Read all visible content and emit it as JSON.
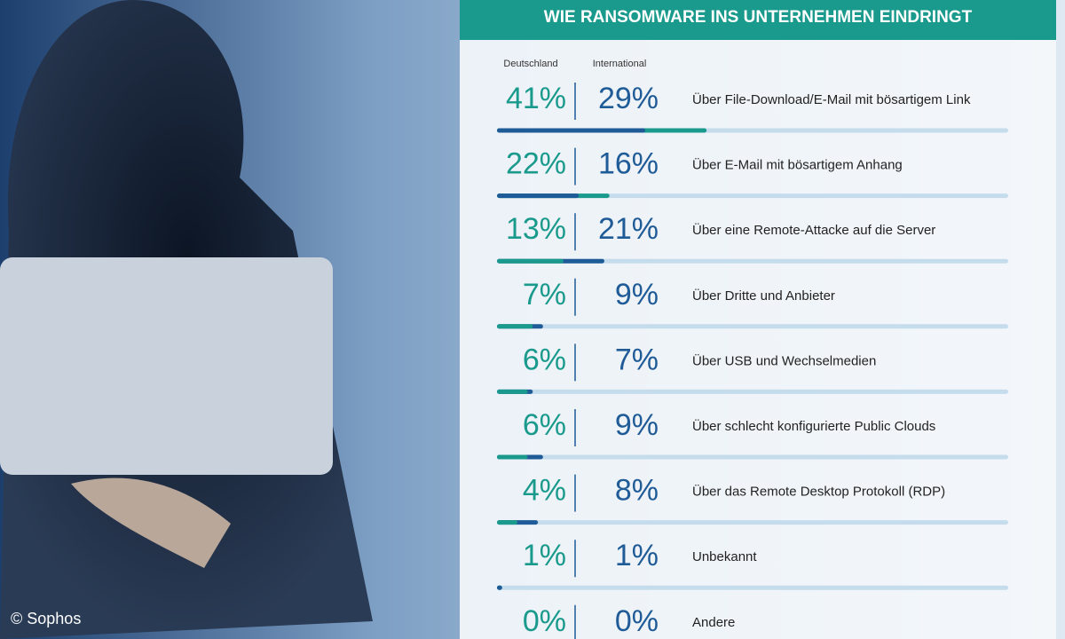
{
  "chart_data": {
    "type": "bar",
    "title": "WIE RANSOMWARE INS UNTERNEHMEN EINDRINGT",
    "categories": [
      "Über File-Download/E-Mail mit bösartigem Link",
      "Über E-Mail mit bösartigem Anhang",
      "Über eine Remote-Attacke auf die Server",
      "Über Dritte und Anbieter",
      "Über USB und Wechselmedien",
      "Über schlecht konfigurierte Public Clouds",
      "Über das Remote Desktop Protokoll (RDP)",
      "Unbekannt",
      "Andere"
    ],
    "series": [
      {
        "name": "Deutschland",
        "color": "#1a9a8c",
        "values": [
          41,
          22,
          13,
          7,
          6,
          6,
          4,
          1,
          0
        ],
        "value_labels": [
          "41%",
          "22%",
          "13%",
          "7%",
          "6%",
          "6%",
          "4%",
          "1%",
          "0%"
        ]
      },
      {
        "name": "International",
        "color": "#1f5b97",
        "values": [
          29,
          16,
          21,
          9,
          7,
          9,
          8,
          1,
          0
        ],
        "value_labels": [
          "29%",
          "16%",
          "21%",
          "9%",
          "7%",
          "9%",
          "8%",
          "1%",
          "0%"
        ]
      }
    ],
    "xlim": [
      0,
      100
    ],
    "credit": "© Sophos"
  }
}
